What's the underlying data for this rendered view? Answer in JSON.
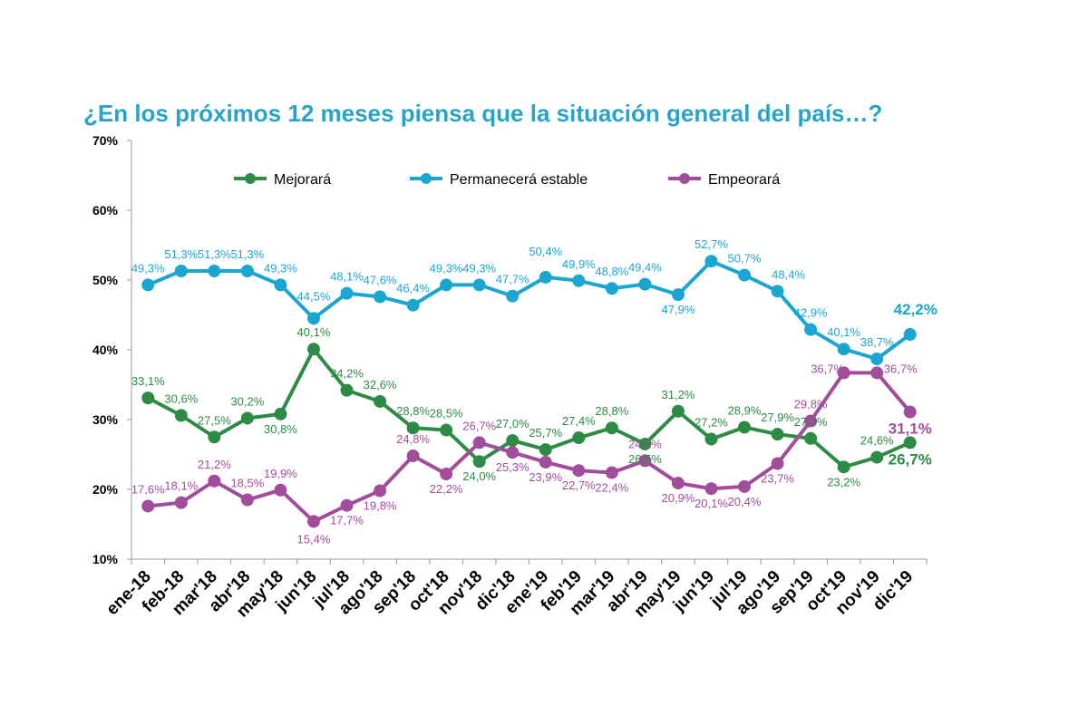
{
  "chart_data": {
    "type": "line",
    "title": "¿En los próximos 12 meses piensa que la situación general del país…?",
    "xlabel": "",
    "ylabel": "",
    "ylim": [
      10,
      70
    ],
    "yticks": [
      "10%",
      "20%",
      "30%",
      "40%",
      "50%",
      "60%",
      "70%"
    ],
    "grid": false,
    "legend_position": "top",
    "categories": [
      "ene-18",
      "feb-18",
      "mar'18",
      "abr'18",
      "may'18",
      "jun'18",
      "jul'18",
      "ago'18",
      "sep'18",
      "oct'18",
      "nov'18",
      "dic'18",
      "ene'19",
      "feb'19",
      "mar'19",
      "abr'19",
      "may'19",
      "jun'19",
      "jul'19",
      "ago'19",
      "sep'19",
      "oct'19",
      "nov'19",
      "dic'19"
    ],
    "series": [
      {
        "name": "Mejorará",
        "color": "#2e8b45",
        "values": [
          33.1,
          30.6,
          27.5,
          30.2,
          30.8,
          40.1,
          34.2,
          32.6,
          28.8,
          28.5,
          24.0,
          27.0,
          25.7,
          27.4,
          28.8,
          26.5,
          31.2,
          27.2,
          28.9,
          27.9,
          27.3,
          23.2,
          24.6,
          26.7
        ],
        "labels": [
          "33,1%",
          "30,6%",
          "27,5%",
          "30,2%",
          "30,8%",
          "40,1%",
          "34,2%",
          "32,6%",
          "28,8%",
          "28,5%",
          "24,0%",
          "27,0%",
          "25,7%",
          "27,4%",
          "28,8%",
          "26,5%",
          "31,2%",
          "27,2%",
          "28,9%",
          "27,9%",
          "27,3%",
          "23,2%",
          "24,6%",
          "26,7%"
        ]
      },
      {
        "name": "Permanecerá estable",
        "color": "#1ba6d2",
        "values": [
          49.3,
          51.3,
          51.3,
          51.3,
          49.3,
          44.5,
          48.1,
          47.6,
          46.4,
          49.3,
          49.3,
          47.7,
          50.4,
          49.9,
          48.8,
          49.4,
          47.9,
          52.7,
          50.7,
          48.4,
          42.9,
          40.1,
          38.7,
          42.2
        ],
        "labels": [
          "49,3%",
          "51,3%",
          "51,3%",
          "51,3%",
          "49,3%",
          "44,5%",
          "48,1%",
          "47,6%",
          "46,4%",
          "49,3%",
          "49,3%",
          "47,7%",
          "50,4%",
          "49,9%",
          "48,8%",
          "49,4%",
          "47,9%",
          "52,7%",
          "50,7%",
          "48,4%",
          "42,9%",
          "40,1%",
          "38,7%",
          "42,2%"
        ]
      },
      {
        "name": "Empeorará",
        "color": "#a24d9c",
        "values": [
          17.6,
          18.1,
          21.2,
          18.5,
          19.9,
          15.4,
          17.7,
          19.8,
          24.8,
          22.2,
          26.7,
          25.3,
          23.9,
          22.7,
          22.4,
          24.1,
          20.9,
          20.1,
          20.4,
          23.7,
          29.8,
          36.7,
          36.7,
          31.1
        ],
        "labels": [
          "17,6%",
          "18,1%",
          "21,2%",
          "18,5%",
          "19,9%",
          "15,4%",
          "17,7%",
          "19,8%",
          "24,8%",
          "22,2%",
          "26,7%",
          "25,3%",
          "23,9%",
          "22,7%",
          "22,4%",
          "24,1%",
          "20,9%",
          "20,1%",
          "20,4%",
          "23,7%",
          "29,8%",
          "36,7%",
          "36,7%",
          "31,1%"
        ]
      }
    ]
  }
}
